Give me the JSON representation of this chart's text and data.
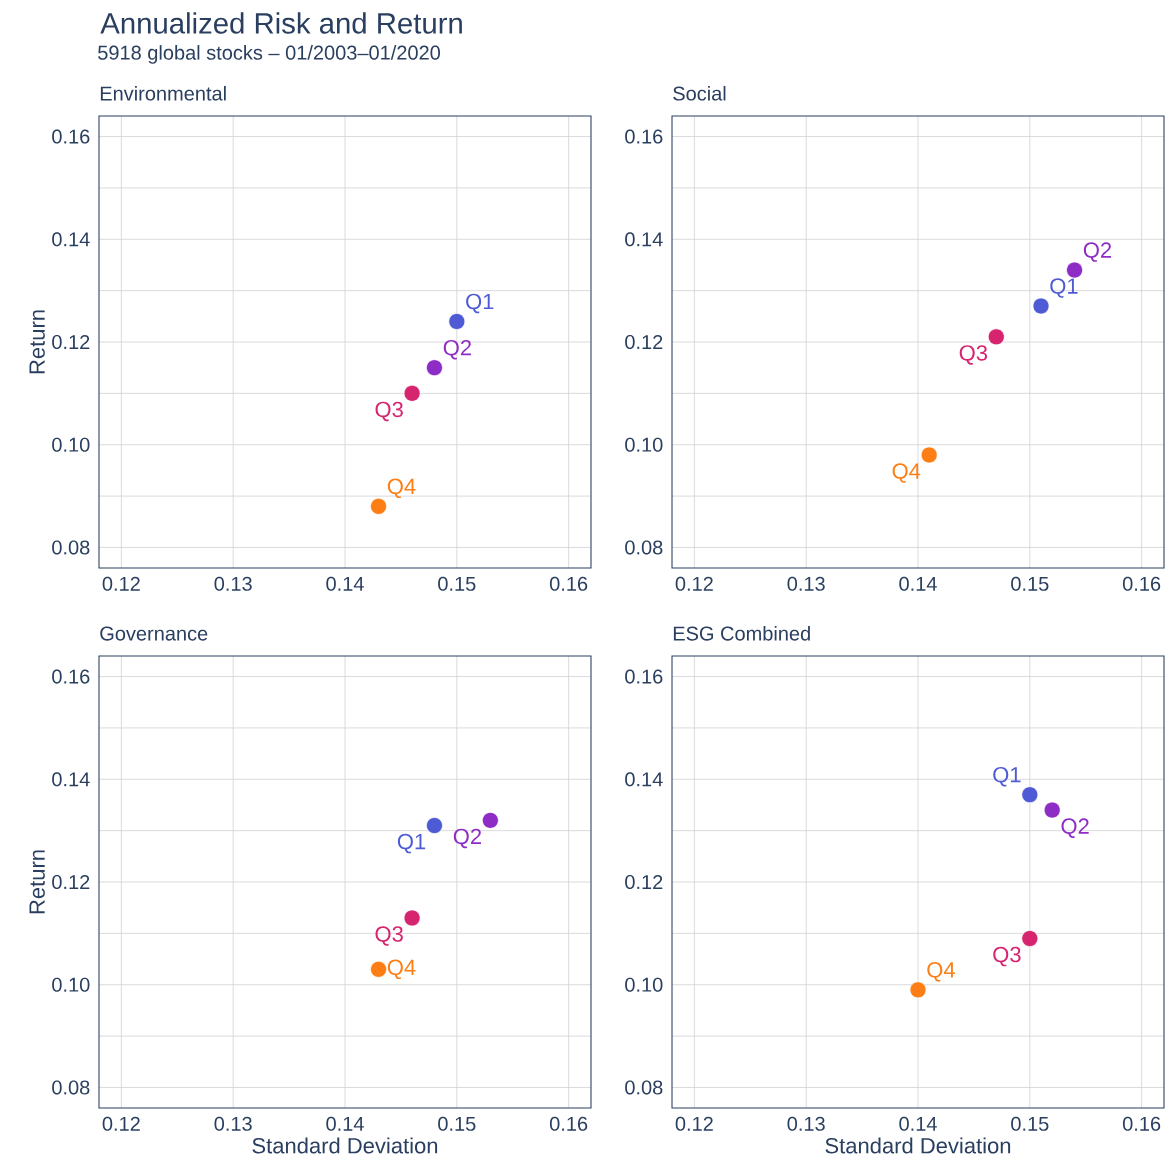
{
  "chart_data": [
    {
      "type": "scatter",
      "title": "Environmental",
      "ylabel": "Return",
      "annotations": [
        "Annualized Risk and Return",
        "5918 global stocks – 01/2003–01/2020"
      ],
      "marker": "circle",
      "grid": true,
      "xlim": [
        0.118,
        0.162
      ],
      "ylim": [
        0.076,
        0.164
      ],
      "xticks": [
        0.12,
        0.13,
        0.14,
        0.15,
        0.16
      ],
      "yticks": [
        0.08,
        {
          "value": 0.09,
          "label": null
        },
        {
          "value": 0.1,
          "label": "0.10"
        },
        {
          "value": 0.11,
          "label": null
        },
        0.12,
        {
          "value": 0.13,
          "label": null
        },
        0.14,
        {
          "value": 0.15,
          "label": null
        },
        0.16
      ],
      "series": [
        {
          "name": "Q1",
          "color": "#4f5bd5",
          "x": [
            0.15
          ],
          "values": [
            0.124
          ]
        },
        {
          "name": "Q2",
          "color": "#8e2dc5",
          "x": [
            0.148
          ],
          "values": [
            0.115
          ]
        },
        {
          "name": "Q3",
          "color": "#d6246e",
          "x": [
            0.146
          ],
          "values": [
            0.11
          ]
        },
        {
          "name": "Q4",
          "color": "#fd7e14",
          "x": [
            0.143
          ],
          "values": [
            0.088
          ]
        }
      ]
    },
    {
      "type": "scatter",
      "title": "Social",
      "marker": "circle",
      "grid": true,
      "xlim": [
        0.118,
        0.162
      ],
      "ylim": [
        0.076,
        0.164
      ],
      "xticks": [
        0.12,
        0.13,
        0.14,
        0.15,
        0.16
      ],
      "yticks": [
        0.08,
        {
          "value": 0.09,
          "label": null
        },
        {
          "value": 0.1,
          "label": "0.10"
        },
        {
          "value": 0.11,
          "label": null
        },
        0.12,
        {
          "value": 0.13,
          "label": null
        },
        0.14,
        {
          "value": 0.15,
          "label": null
        },
        0.16
      ],
      "series": [
        {
          "name": "Q1",
          "color": "#4f5bd5",
          "x": [
            0.151
          ],
          "values": [
            0.127
          ]
        },
        {
          "name": "Q2",
          "color": "#8e2dc5",
          "x": [
            0.154
          ],
          "values": [
            0.134
          ]
        },
        {
          "name": "Q3",
          "color": "#d6246e",
          "x": [
            0.147
          ],
          "values": [
            0.121
          ]
        },
        {
          "name": "Q4",
          "color": "#fd7e14",
          "x": [
            0.141
          ],
          "values": [
            0.098
          ]
        }
      ]
    },
    {
      "type": "scatter",
      "title": "Governance",
      "xlabel": "Standard Deviation",
      "ylabel": "Return",
      "marker": "circle",
      "grid": true,
      "xlim": [
        0.118,
        0.162
      ],
      "ylim": [
        0.076,
        0.164
      ],
      "xticks": [
        0.12,
        0.13,
        0.14,
        0.15,
        0.16
      ],
      "yticks": [
        0.08,
        {
          "value": 0.09,
          "label": null
        },
        {
          "value": 0.1,
          "label": "0.10"
        },
        {
          "value": 0.11,
          "label": null
        },
        0.12,
        {
          "value": 0.13,
          "label": null
        },
        0.14,
        {
          "value": 0.15,
          "label": null
        },
        0.16
      ],
      "series": [
        {
          "name": "Q1",
          "color": "#4f5bd5",
          "x": [
            0.148
          ],
          "values": [
            0.131
          ]
        },
        {
          "name": "Q2",
          "color": "#8e2dc5",
          "x": [
            0.153
          ],
          "values": [
            0.132
          ]
        },
        {
          "name": "Q3",
          "color": "#d6246e",
          "x": [
            0.146
          ],
          "values": [
            0.113
          ]
        },
        {
          "name": "Q4",
          "color": "#fd7e14",
          "x": [
            0.143
          ],
          "values": [
            0.103
          ]
        }
      ]
    },
    {
      "type": "scatter",
      "title": "ESG Combined",
      "xlabel": "Standard Deviation",
      "marker": "circle",
      "grid": true,
      "xlim": [
        0.118,
        0.162
      ],
      "ylim": [
        0.076,
        0.164
      ],
      "xticks": [
        0.12,
        0.13,
        0.14,
        0.15,
        0.16
      ],
      "yticks": [
        0.08,
        {
          "value": 0.09,
          "label": null
        },
        {
          "value": 0.1,
          "label": "0.10"
        },
        {
          "value": 0.11,
          "label": null
        },
        0.12,
        {
          "value": 0.13,
          "label": null
        },
        0.14,
        {
          "value": 0.15,
          "label": null
        },
        0.16
      ],
      "series": [
        {
          "name": "Q1",
          "color": "#4f5bd5",
          "x": [
            0.15
          ],
          "values": [
            0.137
          ]
        },
        {
          "name": "Q2",
          "color": "#8e2dc5",
          "x": [
            0.152
          ],
          "values": [
            0.134
          ]
        },
        {
          "name": "Q3",
          "color": "#d6246e",
          "x": [
            0.15
          ],
          "values": [
            0.109
          ]
        },
        {
          "name": "Q4",
          "color": "#fd7e14",
          "x": [
            0.14
          ],
          "values": [
            0.099
          ]
        }
      ]
    }
  ]
}
